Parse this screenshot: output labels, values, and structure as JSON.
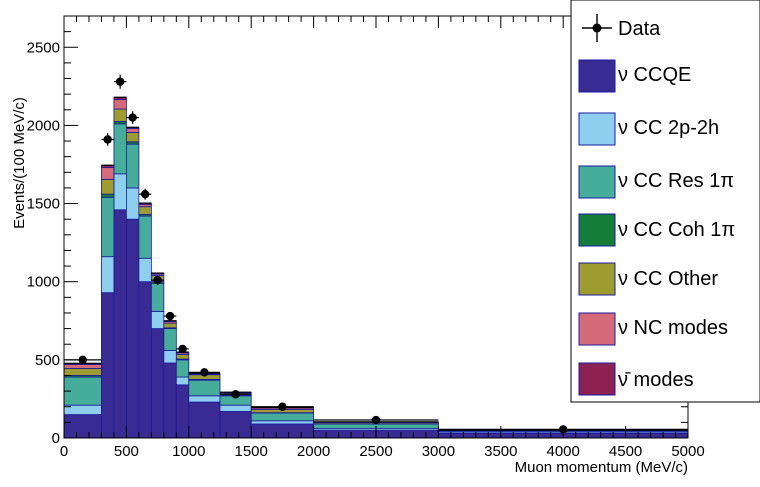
{
  "chart_data": {
    "type": "bar",
    "stacked": true,
    "xlabel": "Muon momentum (MeV/c)",
    "ylabel": "Events/(100 MeV/c)",
    "xlim": [
      0,
      5000
    ],
    "ylim": [
      0,
      2700
    ],
    "x_ticks": [
      0,
      500,
      1000,
      1500,
      2000,
      2500,
      3000,
      3500,
      4000,
      4500,
      5000
    ],
    "y_ticks": [
      0,
      500,
      1000,
      1500,
      2000,
      2500
    ],
    "bin_edges": [
      0,
      300,
      400,
      500,
      600,
      700,
      800,
      900,
      1000,
      1250,
      1500,
      2000,
      3000,
      5000
    ],
    "series": [
      {
        "name": "ν CCQE",
        "color": "#3a2a94",
        "values": [
          150,
          930,
          1460,
          1400,
          1000,
          700,
          480,
          340,
          230,
          170,
          90,
          50,
          30
        ]
      },
      {
        "name": "ν CC 2p-2h",
        "color": "#8ecff0",
        "values": [
          60,
          230,
          230,
          200,
          150,
          110,
          80,
          50,
          40,
          40,
          20,
          10,
          8
        ]
      },
      {
        "name": "ν CC Res 1π",
        "color": "#45ad9a",
        "values": [
          180,
          380,
          320,
          280,
          270,
          180,
          140,
          110,
          100,
          60,
          50,
          30,
          7
        ]
      },
      {
        "name": "ν CC Coh 1π",
        "color": "#147d38",
        "values": [
          10,
          20,
          15,
          15,
          10,
          10,
          5,
          5,
          5,
          3,
          2,
          1,
          0
        ]
      },
      {
        "name": "ν CC Other",
        "color": "#9e9c2f",
        "values": [
          45,
          95,
          80,
          60,
          50,
          40,
          30,
          30,
          30,
          15,
          20,
          8,
          3
        ]
      },
      {
        "name": "ν NC modes",
        "color": "#d56a79",
        "values": [
          25,
          75,
          60,
          25,
          15,
          10,
          10,
          10,
          5,
          2,
          10,
          2,
          1
        ]
      },
      {
        "name": "ν̄ modes",
        "color": "#8c2152",
        "values": [
          8,
          15,
          15,
          8,
          8,
          5,
          5,
          5,
          5,
          3,
          3,
          2,
          1
        ]
      }
    ],
    "data_series": {
      "name": "Data",
      "x": [
        150,
        350,
        450,
        550,
        650,
        750,
        850,
        950,
        1125,
        1375,
        1750,
        2500,
        4000
      ],
      "y": [
        500,
        1910,
        2280,
        2050,
        1560,
        1010,
        780,
        570,
        420,
        280,
        200,
        115,
        55
      ],
      "err": [
        15,
        40,
        45,
        40,
        35,
        30,
        25,
        22,
        15,
        12,
        8,
        6,
        4
      ]
    },
    "legend_position": "top-right",
    "grid": false
  },
  "legend": {
    "labels": [
      "Data",
      "ν CCQE",
      "ν CC 2p-2h",
      "ν CC Res 1π",
      "ν CC Coh 1π",
      "ν CC Other",
      "ν NC modes",
      "ν̄ modes"
    ]
  }
}
